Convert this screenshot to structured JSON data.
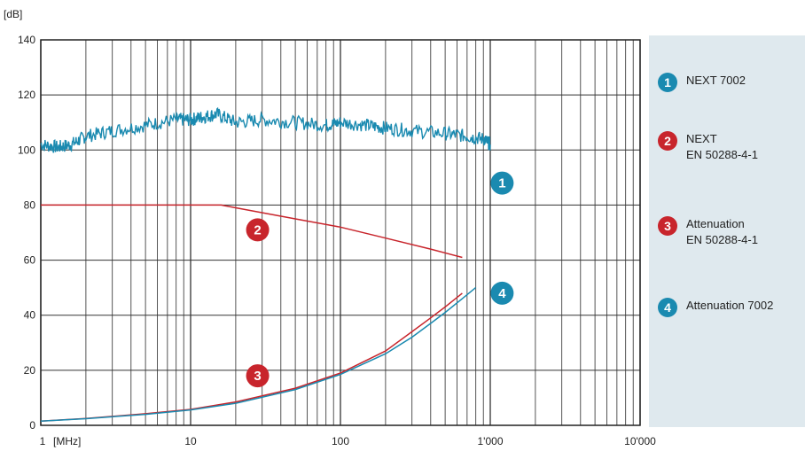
{
  "chart_data": {
    "type": "line",
    "xscale": "log",
    "xlim": [
      1,
      10000
    ],
    "ylim": [
      0,
      140
    ],
    "xlabel_unit": "[MHz]",
    "ylabel_unit": "[dB]",
    "grid": true,
    "x_ticks": [
      1,
      10,
      100,
      1000,
      10000
    ],
    "x_tick_labels": [
      "1",
      "10",
      "100",
      "1'000",
      "10'000"
    ],
    "y_ticks": [
      0,
      20,
      40,
      60,
      80,
      100,
      120,
      140
    ],
    "y_tick_labels": [
      "0",
      "20",
      "40",
      "60",
      "80",
      "100",
      "120",
      "140"
    ],
    "legend_position": "right panel",
    "series": [
      {
        "id": "1",
        "name": "NEXT 7002",
        "color": "#1a8ab0",
        "x": [
          1,
          1.3,
          1.6,
          2,
          3,
          5,
          8,
          10,
          12,
          15,
          20,
          30,
          50,
          80,
          100,
          150,
          200,
          300,
          500,
          700,
          900,
          1000
        ],
        "y": [
          102,
          101,
          102,
          105,
          107,
          109,
          111,
          111,
          112,
          113,
          110,
          111,
          110,
          109,
          110,
          109,
          108,
          107,
          106,
          105,
          104,
          102
        ]
      },
      {
        "id": "2",
        "name": "NEXT EN 50288-4-1",
        "color": "#c8252c",
        "x": [
          1,
          16,
          20,
          50,
          100,
          200,
          400,
          650
        ],
        "y": [
          80,
          80,
          79,
          75,
          72,
          68,
          64,
          61
        ]
      },
      {
        "id": "3",
        "name": "Attenuation EN 50288-4-1",
        "color": "#c8252c",
        "x": [
          1,
          2,
          5,
          10,
          20,
          50,
          100,
          200,
          300,
          400,
          500,
          650
        ],
        "y": [
          1.5,
          2.5,
          4.2,
          5.8,
          8.5,
          13.5,
          19,
          27,
          34,
          39,
          43,
          48
        ]
      },
      {
        "id": "4",
        "name": "Attenuation 7002",
        "color": "#1a8ab0",
        "x": [
          1,
          2,
          5,
          10,
          20,
          50,
          100,
          200,
          300,
          400,
          500,
          650,
          800
        ],
        "y": [
          1.5,
          2.4,
          4.0,
          5.6,
          8.0,
          13.0,
          18.5,
          26,
          32,
          37,
          41,
          46,
          50
        ]
      }
    ],
    "markers": [
      {
        "label": "1",
        "x": 1200,
        "y": 88,
        "color": "#1a8ab0"
      },
      {
        "label": "2",
        "x": 28,
        "y": 71,
        "color": "#c8252c"
      },
      {
        "label": "3",
        "x": 28,
        "y": 18,
        "color": "#c8252c"
      },
      {
        "label": "4",
        "x": 1200,
        "y": 48,
        "color": "#1a8ab0"
      }
    ]
  },
  "legend": [
    {
      "num": "1",
      "lines": [
        "NEXT 7002"
      ],
      "color": "#1a8ab0"
    },
    {
      "num": "2",
      "lines": [
        "NEXT",
        "EN 50288-4-1"
      ],
      "color": "#c8252c"
    },
    {
      "num": "3",
      "lines": [
        "Attenuation",
        "EN 50288-4-1"
      ],
      "color": "#c8252c"
    },
    {
      "num": "4",
      "lines": [
        "Attenuation 7002"
      ],
      "color": "#1a8ab0"
    }
  ]
}
